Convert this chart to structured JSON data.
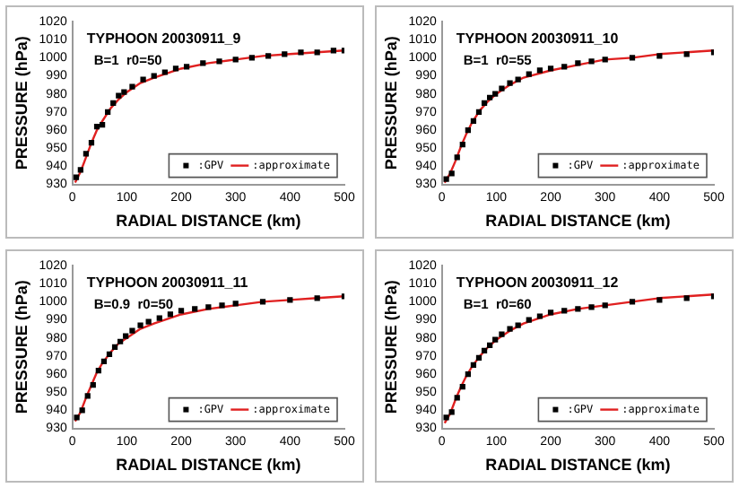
{
  "chart_data": [
    {
      "type": "scatter",
      "title": "TYPHOON 20030911_9",
      "subtitle": "B=1  r0=50",
      "xlabel": "RADIAL DISTANCE (km)",
      "ylabel": "PRESSURE (hPa)",
      "xlim": [
        0,
        500
      ],
      "xticks": [
        0,
        100,
        200,
        300,
        400,
        500
      ],
      "ylim": [
        930,
        1020
      ],
      "yticks": [
        930,
        940,
        950,
        960,
        970,
        980,
        990,
        1000,
        1010,
        1020
      ],
      "legend": "bottom right",
      "series": [
        {
          "name": ":GPV",
          "marker": "square",
          "color": "#000000",
          "x": [
            7,
            15,
            25,
            35,
            45,
            55,
            65,
            75,
            85,
            95,
            110,
            130,
            150,
            170,
            190,
            210,
            240,
            270,
            300,
            330,
            360,
            390,
            420,
            450,
            480,
            500
          ],
          "values": [
            934,
            938,
            947,
            953,
            962,
            963,
            970,
            975,
            979,
            981,
            984,
            988,
            990,
            992,
            994,
            995,
            997,
            998,
            999,
            1000,
            1001,
            1002,
            1003,
            1003,
            1004,
            1004
          ]
        },
        {
          "name": ":approximate",
          "type": "line",
          "marker": "none",
          "color": "#e02020",
          "x": [
            5,
            15,
            25,
            35,
            45,
            55,
            70,
            85,
            100,
            125,
            150,
            200,
            250,
            300,
            350,
            400,
            450,
            500
          ],
          "values": [
            931,
            937,
            945,
            953,
            960,
            965,
            972,
            977,
            981,
            986,
            989,
            994,
            997,
            999,
            1001,
            1002,
            1003,
            1004
          ]
        }
      ]
    },
    {
      "type": "scatter",
      "title": "TYPHOON 20030911_10",
      "subtitle": "B=1  r0=55",
      "xlabel": "RADIAL DISTANCE (km)",
      "ylabel": "PRESSURE (hPa)",
      "xlim": [
        0,
        500
      ],
      "xticks": [
        0,
        100,
        200,
        300,
        400,
        500
      ],
      "ylim": [
        930,
        1020
      ],
      "yticks": [
        930,
        940,
        950,
        960,
        970,
        980,
        990,
        1000,
        1010,
        1020
      ],
      "legend": "bottom right",
      "series": [
        {
          "name": ":GPV",
          "marker": "square",
          "color": "#000000",
          "x": [
            8,
            18,
            28,
            38,
            48,
            58,
            68,
            78,
            88,
            98,
            110,
            125,
            140,
            160,
            180,
            200,
            225,
            250,
            275,
            300,
            350,
            400,
            450,
            500
          ],
          "values": [
            933,
            936,
            945,
            952,
            960,
            965,
            970,
            975,
            978,
            980,
            983,
            986,
            988,
            991,
            993,
            994,
            995,
            997,
            998,
            999,
            1000,
            1001,
            1002,
            1003
          ]
        },
        {
          "name": ":approximate",
          "type": "line",
          "marker": "none",
          "color": "#e02020",
          "x": [
            5,
            15,
            25,
            35,
            45,
            55,
            70,
            85,
            100,
            125,
            150,
            200,
            250,
            300,
            350,
            400,
            450,
            500
          ],
          "values": [
            931,
            936,
            943,
            951,
            958,
            964,
            971,
            976,
            980,
            985,
            989,
            993,
            996,
            999,
            1000,
            1002,
            1003,
            1004
          ]
        }
      ]
    },
    {
      "type": "scatter",
      "title": "TYPHOON 20030911_11",
      "subtitle": "B=0.9  r0=50",
      "xlabel": "RADIAL DISTANCE (km)",
      "ylabel": "PRESSURE (hPa)",
      "xlim": [
        0,
        500
      ],
      "xticks": [
        0,
        100,
        200,
        300,
        400,
        500
      ],
      "ylim": [
        930,
        1020
      ],
      "yticks": [
        930,
        940,
        950,
        960,
        970,
        980,
        990,
        1000,
        1010,
        1020
      ],
      "legend": "bottom right",
      "series": [
        {
          "name": ":GPV",
          "marker": "square",
          "color": "#000000",
          "x": [
            8,
            18,
            28,
            38,
            48,
            58,
            68,
            78,
            88,
            98,
            110,
            125,
            140,
            160,
            180,
            200,
            225,
            250,
            275,
            300,
            350,
            400,
            450,
            500
          ],
          "values": [
            936,
            940,
            948,
            954,
            962,
            967,
            971,
            975,
            978,
            981,
            984,
            987,
            989,
            991,
            993,
            995,
            996,
            997,
            998,
            999,
            1000,
            1001,
            1002,
            1003
          ]
        },
        {
          "name": ":approximate",
          "type": "line",
          "marker": "none",
          "color": "#e02020",
          "x": [
            5,
            15,
            25,
            35,
            45,
            55,
            70,
            85,
            100,
            125,
            150,
            200,
            250,
            300,
            350,
            400,
            450,
            500
          ],
          "values": [
            934,
            939,
            947,
            954,
            961,
            966,
            972,
            977,
            980,
            985,
            988,
            993,
            996,
            998,
            1000,
            1001,
            1002,
            1003
          ]
        }
      ]
    },
    {
      "type": "scatter",
      "title": "TYPHOON 20030911_12",
      "subtitle": "B=1  r0=60",
      "xlabel": "RADIAL DISTANCE (km)",
      "ylabel": "PRESSURE (hPa)",
      "xlim": [
        0,
        500
      ],
      "xticks": [
        0,
        100,
        200,
        300,
        400,
        500
      ],
      "ylim": [
        930,
        1020
      ],
      "yticks": [
        930,
        940,
        950,
        960,
        970,
        980,
        990,
        1000,
        1010,
        1020
      ],
      "legend": "bottom right",
      "series": [
        {
          "name": ":GPV",
          "marker": "square",
          "color": "#000000",
          "x": [
            8,
            18,
            28,
            38,
            48,
            58,
            68,
            78,
            88,
            98,
            110,
            125,
            140,
            160,
            180,
            200,
            225,
            250,
            275,
            300,
            350,
            400,
            450,
            500
          ],
          "values": [
            936,
            939,
            947,
            953,
            960,
            965,
            969,
            973,
            976,
            979,
            982,
            985,
            987,
            990,
            992,
            994,
            995,
            996,
            997,
            998,
            1000,
            1001,
            1002,
            1003
          ]
        },
        {
          "name": ":approximate",
          "type": "line",
          "marker": "none",
          "color": "#e02020",
          "x": [
            5,
            15,
            25,
            35,
            45,
            55,
            70,
            85,
            100,
            125,
            150,
            200,
            250,
            300,
            350,
            400,
            450,
            500
          ],
          "values": [
            933,
            938,
            946,
            953,
            959,
            964,
            970,
            975,
            979,
            984,
            988,
            993,
            996,
            998,
            1000,
            1002,
            1003,
            1004
          ]
        }
      ]
    }
  ]
}
